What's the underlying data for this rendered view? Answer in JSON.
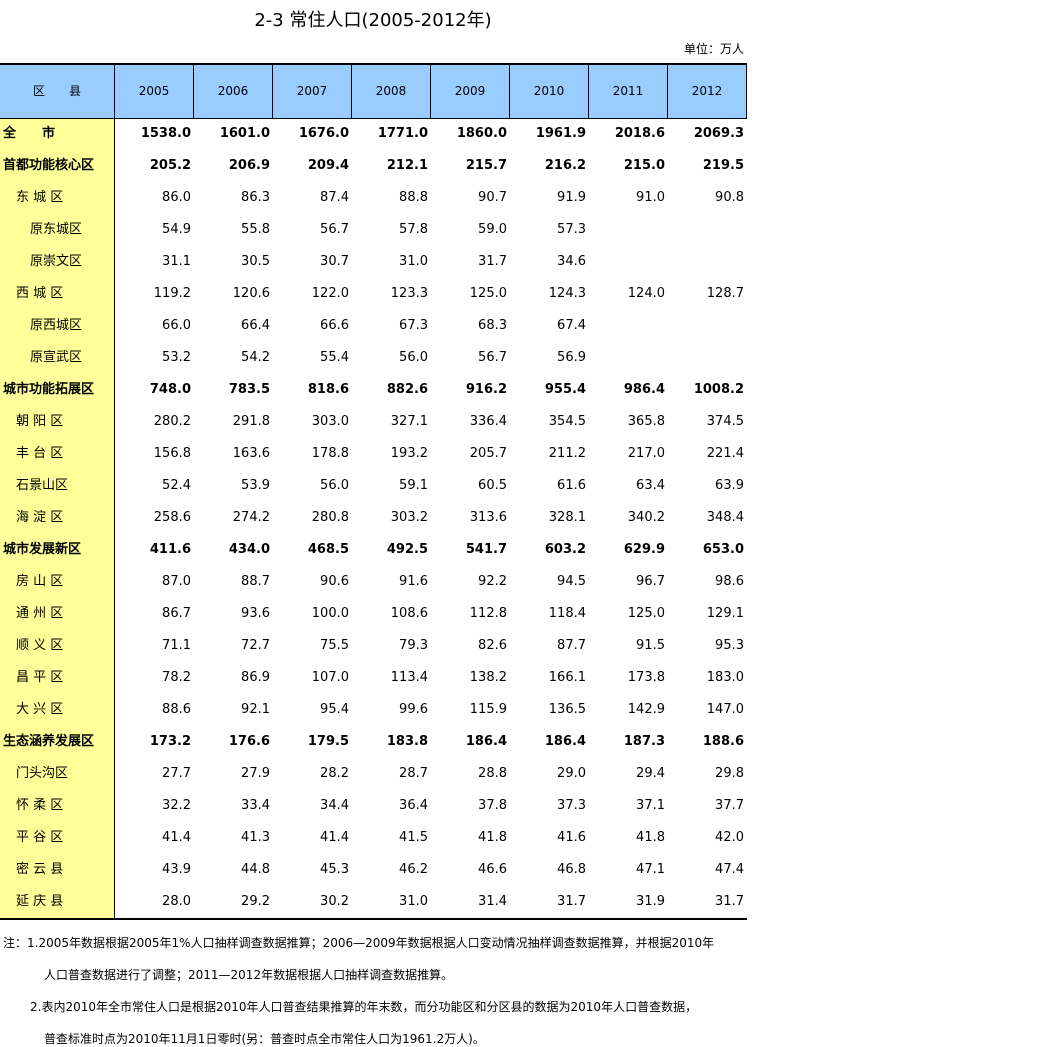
{
  "title": "2-3  常住人口(2005-2012年)",
  "unit": "单位：万人",
  "table": {
    "header": [
      "区　　县",
      "2005",
      "2006",
      "2007",
      "2008",
      "2009",
      "2010",
      "2011",
      "2012"
    ],
    "rows": [
      [
        "全　　市",
        "1538.0",
        "1601.0",
        "1676.0",
        "1771.0",
        "1860.0",
        "1961.9",
        "2018.6",
        "2069.3"
      ],
      [
        "首都功能核心区",
        "205.2",
        "206.9",
        "209.4",
        "212.1",
        "215.7",
        "216.2",
        "215.0",
        "219.5"
      ],
      [
        "东 城 区",
        "86.0",
        "86.3",
        "87.4",
        "88.8",
        "90.7",
        "91.9",
        "91.0",
        "90.8"
      ],
      [
        "原东城区",
        "54.9",
        "55.8",
        "56.7",
        "57.8",
        "59.0",
        "57.3"
      ],
      [
        "原崇文区",
        "31.1",
        "30.5",
        "30.7",
        "31.0",
        "31.7",
        "34.6"
      ],
      [
        "西 城 区",
        "119.2",
        "120.6",
        "122.0",
        "123.3",
        "125.0",
        "124.3",
        "124.0",
        "128.7"
      ],
      [
        "原西城区",
        "66.0",
        "66.4",
        "66.6",
        "67.3",
        "68.3",
        "67.4"
      ],
      [
        "原宣武区",
        "53.2",
        "54.2",
        "55.4",
        "56.0",
        "56.7",
        "56.9"
      ],
      [
        "城市功能拓展区",
        "748.0",
        "783.5",
        "818.6",
        "882.6",
        "916.2",
        "955.4",
        "986.4",
        "1008.2"
      ],
      [
        "朝 阳 区",
        "280.2",
        "291.8",
        "303.0",
        "327.1",
        "336.4",
        "354.5",
        "365.8",
        "374.5"
      ],
      [
        "丰 台 区",
        "156.8",
        "163.6",
        "178.8",
        "193.2",
        "205.7",
        "211.2",
        "217.0",
        "221.4"
      ],
      [
        "石景山区",
        "52.4",
        "53.9",
        "56.0",
        "59.1",
        "60.5",
        "61.6",
        "63.4",
        "63.9"
      ],
      [
        "海 淀 区",
        "258.6",
        "274.2",
        "280.8",
        "303.2",
        "313.6",
        "328.1",
        "340.2",
        "348.4"
      ],
      [
        "城市发展新区",
        "411.6",
        "434.0",
        "468.5",
        "492.5",
        "541.7",
        "603.2",
        "629.9",
        "653.0"
      ],
      [
        "房 山 区",
        "87.0",
        "88.7",
        "90.6",
        "91.6",
        "92.2",
        "94.5",
        "96.7",
        "98.6"
      ],
      [
        "通 州 区",
        "86.7",
        "93.6",
        "100.0",
        "108.6",
        "112.8",
        "118.4",
        "125.0",
        "129.1"
      ],
      [
        "顺 义 区",
        "71.1",
        "72.7",
        "75.5",
        "79.3",
        "82.6",
        "87.7",
        "91.5",
        "95.3"
      ],
      [
        "昌 平 区",
        "78.2",
        "86.9",
        "107.0",
        "113.4",
        "138.2",
        "166.1",
        "173.8",
        "183.0"
      ],
      [
        "大 兴 区",
        "88.6",
        "92.1",
        "95.4",
        "99.6",
        "115.9",
        "136.5",
        "142.9",
        "147.0"
      ],
      [
        "生态涵养发展区",
        "173.2",
        "176.6",
        "179.5",
        "183.8",
        "186.4",
        "186.4",
        "187.3",
        "188.6"
      ],
      [
        "门头沟区",
        "27.7",
        "27.9",
        "28.2",
        "28.7",
        "28.8",
        "29.0",
        "29.4",
        "29.8"
      ],
      [
        "怀 柔 区",
        "32.2",
        "33.4",
        "34.4",
        "36.4",
        "37.8",
        "37.3",
        "37.1",
        "37.7"
      ],
      [
        "平 谷 区",
        "41.4",
        "41.3",
        "41.4",
        "41.5",
        "41.8",
        "41.6",
        "41.8",
        "42.0"
      ],
      [
        "密 云 县",
        "43.9",
        "44.8",
        "45.3",
        "46.2",
        "46.6",
        "46.8",
        "47.1",
        "47.4"
      ],
      [
        "延 庆 县",
        "28.0",
        "29.2",
        "30.2",
        "31.0",
        "31.4",
        "31.7",
        "31.9",
        "31.7"
      ]
    ]
  },
  "notes": [
    "注：1.2005年数据根据2005年1%人口抽样调查数据推算；2006—2009年数据根据人口变动情况抽样调查数据推算，并根据2010年",
    "人口普查数据进行了调整；2011—2012年数据根据人口抽样调查数据推算。",
    "2.表内2010年全市常住人口是根据2010年人口普查结果推算的年末数，而分功能区和分区县的数据为2010年人口普查数据，",
    "普查标准时点为2010年11月1日零时(另：普查时点全市常住人口为1961.2万人)。"
  ]
}
